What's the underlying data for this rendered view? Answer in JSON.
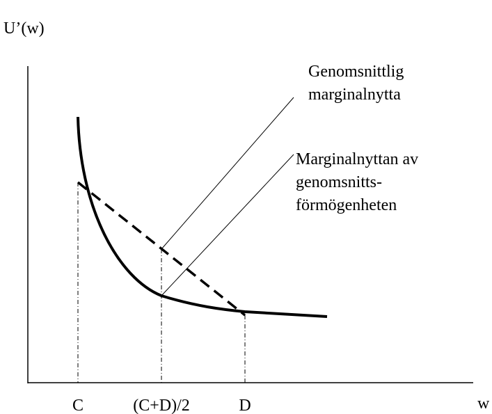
{
  "axes": {
    "y_label": "U’(w)",
    "x_label": "w"
  },
  "x_labels": [
    "C",
    "(C+D)/2",
    "D"
  ],
  "annotations": [
    {
      "lines": [
        "Genomsnittlig",
        "marginalnytta"
      ]
    },
    {
      "lines": [
        "Marginalnyttan av",
        "genomsnitts-",
        "förmögenheten"
      ]
    }
  ]
}
